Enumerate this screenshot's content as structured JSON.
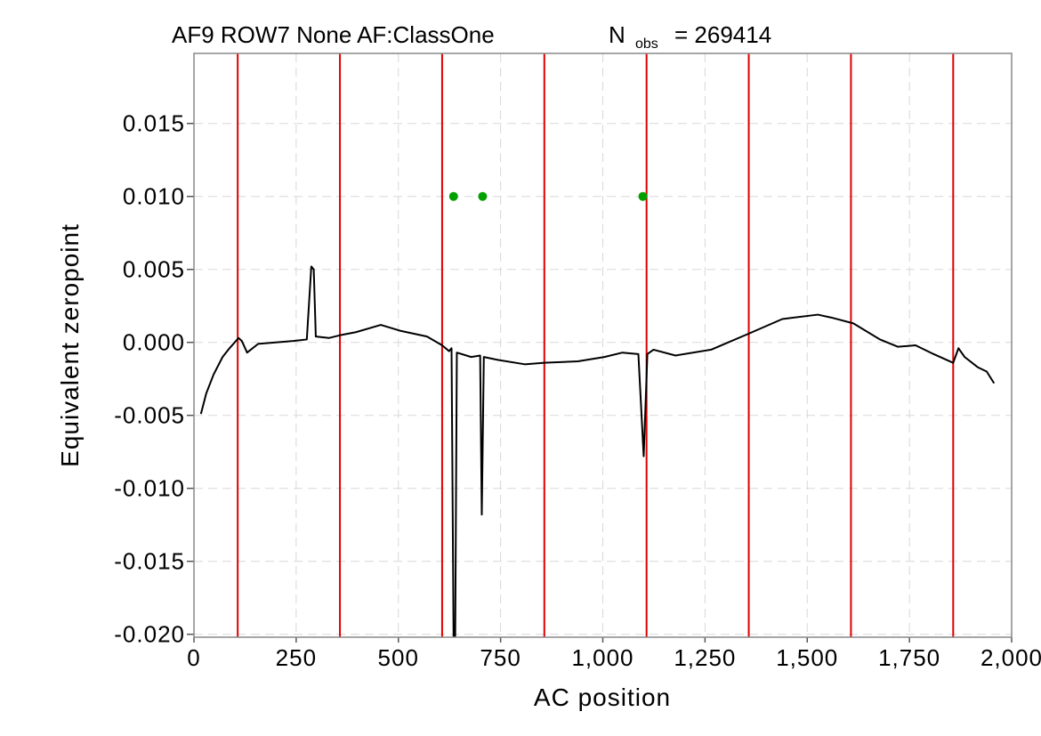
{
  "chart_data": {
    "type": "line",
    "title": "AF9 ROW7 None AF:ClassOne",
    "title_stat": [
      "N",
      "obs",
      "= 269414"
    ],
    "xlabel": "AC position",
    "ylabel": "Equivalent zeropoint",
    "xlim": [
      0,
      2000
    ],
    "ylim": [
      -0.0202,
      0.0198
    ],
    "xticks": [
      0,
      250,
      500,
      750,
      {
        "value": 1000,
        "label": "1,000"
      },
      {
        "value": 1250,
        "label": "1,250"
      },
      {
        "value": 1500,
        "label": "1,500"
      },
      {
        "value": 1750,
        "label": "1,750"
      },
      {
        "value": 2000,
        "label": "2,000"
      }
    ],
    "yticks": [
      {
        "value": -0.02,
        "label": "-0.020"
      },
      {
        "value": -0.015,
        "label": "-0.015"
      },
      {
        "value": -0.01,
        "label": "-0.010"
      },
      {
        "value": -0.005,
        "label": "-0.005"
      },
      {
        "value": 0,
        "label": "0.000"
      },
      {
        "value": 0.005,
        "label": "0.005"
      },
      {
        "value": 0.01,
        "label": "0.010"
      },
      {
        "value": 0.015,
        "label": "0.015"
      }
    ],
    "grid": true,
    "x": [
      17,
      30,
      48,
      70,
      87,
      109,
      117,
      130,
      157,
      200,
      243,
      276,
      287,
      293,
      298,
      330,
      359,
      396,
      457,
      504,
      570,
      607,
      624,
      630,
      635,
      639,
      643,
      678,
      700,
      704,
      709,
      743,
      809,
      857,
      939,
      1004,
      1048,
      1087,
      1100,
      1109,
      1124,
      1178,
      1265,
      1357,
      1439,
      1526,
      1559,
      1613,
      1678,
      1722,
      1765,
      1809,
      1857,
      1870,
      1885,
      1917,
      1939,
      1957
    ],
    "series": [
      {
        "name": "zeropoint",
        "color": "#000000",
        "values": [
          -0.0049,
          -0.0035,
          -0.0022,
          -0.001,
          -0.0004,
          0.0003,
          0.0001,
          -0.0007,
          -0.0001,
          0.0,
          0.0001,
          0.0002,
          0.0052,
          0.005,
          0.0004,
          0.0003,
          0.0005,
          0.0007,
          0.0012,
          0.0008,
          0.0004,
          -0.0002,
          -0.0006,
          -0.0004,
          -0.0202,
          -0.0202,
          -0.0007,
          -0.001,
          -0.0009,
          -0.0118,
          -0.001,
          -0.0012,
          -0.0015,
          -0.0014,
          -0.0013,
          -0.001,
          -0.0007,
          -0.0008,
          -0.0078,
          -0.0008,
          -0.0005,
          -0.0009,
          -0.0005,
          0.0006,
          0.0016,
          0.0019,
          0.0017,
          0.0013,
          0.0002,
          -0.0003,
          -0.0002,
          -0.0008,
          -0.0014,
          -0.0004,
          -0.001,
          -0.0017,
          -0.002,
          -0.0028
        ]
      }
    ],
    "vlines": {
      "color": "#e00000",
      "x": [
        107,
        357,
        607,
        857,
        1107,
        1357,
        1607,
        1857
      ]
    },
    "points": {
      "color": "#00a000",
      "x": [
        635,
        706,
        1098
      ],
      "values": [
        0.01,
        0.01,
        0.01
      ]
    }
  }
}
